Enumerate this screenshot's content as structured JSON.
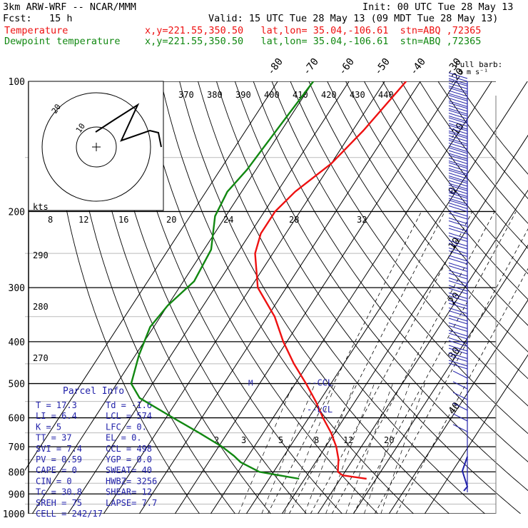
{
  "header": {
    "model": "3km ARW-WRF -- NCAR/MMM",
    "init": "Init: 00 UTC Tue 28 May 13",
    "fcst": "Fcst:   15 h",
    "valid": "Valid: 15 UTC Tue 28 May 13 (09 MDT Tue 28 May 13)",
    "temp_label": "Temperature",
    "temp_loc": "x,y=221.55,350.50   lat,lon= 35.04,-106.61  stn=ABQ ,72365",
    "dew_label": "Dewpoint temperature",
    "dew_loc": "x,y=221.55,350.50   lat,lon= 35.04,-106.61  stn=ABQ ,72365"
  },
  "barb_legend": {
    "line1": "Full barb:",
    "line2": "5 m s⁻¹"
  },
  "colors": {
    "temperature": "#ee1111",
    "dewpoint": "#118811",
    "parcel_title": "#2222aa",
    "wind": "#2222aa",
    "isobar": "#000000",
    "guide": "#bbbbbb"
  },
  "parcel_info": {
    "title": "Parcel Info",
    "rows": [
      {
        "a": "T  =    17.3",
        "b": "Td =  -1.6"
      },
      {
        "a": "LI =     6.4",
        "b": "LCL =  574"
      },
      {
        "a": "K  =       5",
        "b": "LFC =   0."
      },
      {
        "a": "TT =      37",
        "b": "EL  =   0."
      },
      {
        "a": "SVI =    7.4",
        "b": "CCL =  498"
      },
      {
        "a": "PV  =   0.59",
        "b": "YGP =  0.0"
      },
      {
        "a": "CAPE =     0",
        "b": "SWEAT=  40"
      },
      {
        "a": "CIN  =     0",
        "b": "HWBZ= 3256"
      },
      {
        "a": "Tc  =   30.8",
        "b": "SHEAR=  12"
      },
      {
        "a": "SREH =    75",
        "b": "LAPSE=  7.7"
      },
      {
        "a": "CELL = 242/17",
        "b": ""
      }
    ]
  },
  "hodograph": {
    "units": "kts",
    "ring_labels": [
      "10",
      "20"
    ]
  },
  "chart_data": {
    "type": "line",
    "title": "",
    "xlabel": "",
    "ylabel": "",
    "pressure_scale": "log",
    "pressure_ticks": [
      100,
      200,
      300,
      400,
      500,
      600,
      700,
      800,
      900,
      1000
    ],
    "isotherm_labels": [
      -80,
      -70,
      -60,
      -50,
      -40,
      -30,
      -20,
      -10,
      0,
      10,
      20,
      30,
      40
    ],
    "theta_labels": [
      370,
      380,
      390,
      400,
      410,
      420,
      430,
      440
    ],
    "theta_low_labels": [
      290,
      280,
      270
    ],
    "mixing_ratio_labels": [
      8,
      12,
      16,
      20,
      24,
      28,
      32
    ],
    "mixing_ratio_low_labels": [
      2,
      3,
      5,
      8,
      12,
      20
    ],
    "lcl_markers": [
      {
        "label": "--CCL",
        "p": 498
      },
      {
        "label": "--LCL",
        "p": 574
      }
    ],
    "series": [
      {
        "name": "Temperature",
        "points": [
          [
            100,
            -44.0
          ],
          [
            130,
            -47.0
          ],
          [
            155,
            -50.0
          ],
          [
            180,
            -55.0
          ],
          [
            200,
            -57.0
          ],
          [
            225,
            -57.0
          ],
          [
            250,
            -55.0
          ],
          [
            300,
            -48.0
          ],
          [
            350,
            -38.0
          ],
          [
            400,
            -31.0
          ],
          [
            450,
            -24.0
          ],
          [
            500,
            -17.0
          ],
          [
            550,
            -11.0
          ],
          [
            600,
            -6.0
          ],
          [
            650,
            -1.0
          ],
          [
            700,
            3.0
          ],
          [
            750,
            6.0
          ],
          [
            775,
            7.0
          ],
          [
            800,
            8.0
          ],
          [
            815,
            10.0
          ],
          [
            830,
            17.3
          ]
        ]
      },
      {
        "name": "Dewpoint temperature",
        "points": [
          [
            100,
            -70.0
          ],
          [
            120,
            -71.0
          ],
          [
            145,
            -72.0
          ],
          [
            160,
            -72.5
          ],
          [
            180,
            -74.0
          ],
          [
            205,
            -73.0
          ],
          [
            245,
            -68.0
          ],
          [
            290,
            -67.0
          ],
          [
            330,
            -70.0
          ],
          [
            370,
            -71.0
          ],
          [
            430,
            -69.0
          ],
          [
            500,
            -66.0
          ],
          [
            540,
            -61.0
          ],
          [
            600,
            -48.0
          ],
          [
            650,
            -38.0
          ],
          [
            700,
            -29.0
          ],
          [
            735,
            -24.0
          ],
          [
            760,
            -21.0
          ],
          [
            800,
            -14.0
          ],
          [
            830,
            -1.6
          ]
        ]
      }
    ]
  }
}
